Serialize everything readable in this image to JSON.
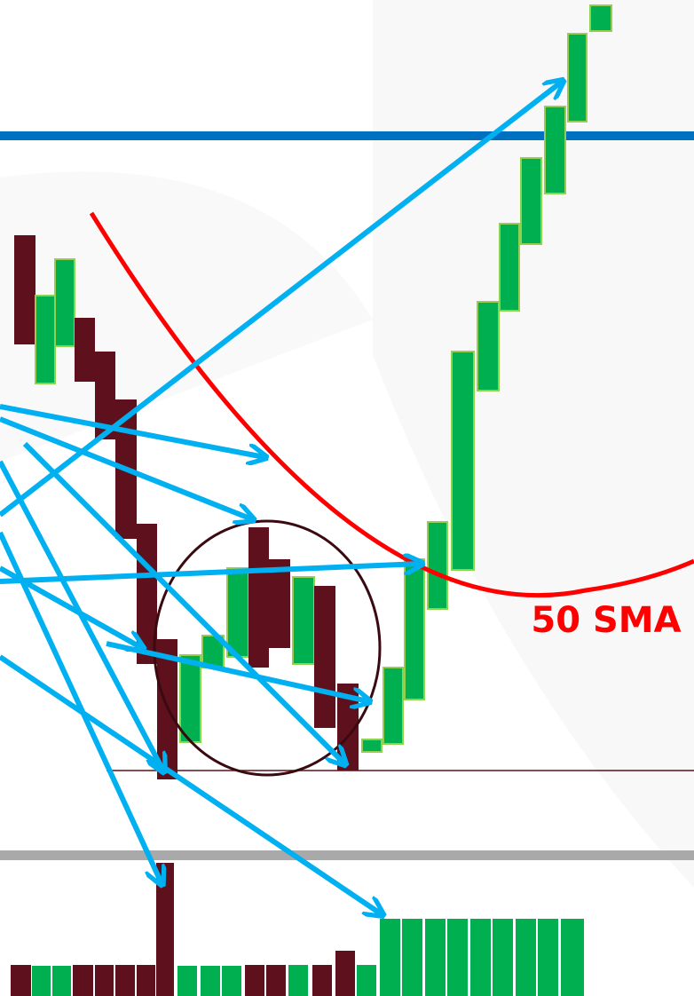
{
  "annotation": "50 SMA"
}
